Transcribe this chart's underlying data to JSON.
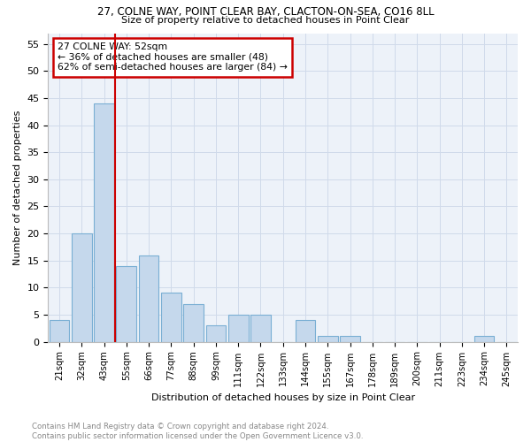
{
  "title1": "27, COLNE WAY, POINT CLEAR BAY, CLACTON-ON-SEA, CO16 8LL",
  "title2": "Size of property relative to detached houses in Point Clear",
  "xlabel": "Distribution of detached houses by size in Point Clear",
  "ylabel": "Number of detached properties",
  "categories": [
    "21sqm",
    "32sqm",
    "43sqm",
    "55sqm",
    "66sqm",
    "77sqm",
    "88sqm",
    "99sqm",
    "111sqm",
    "122sqm",
    "133sqm",
    "144sqm",
    "155sqm",
    "167sqm",
    "178sqm",
    "189sqm",
    "200sqm",
    "211sqm",
    "223sqm",
    "234sqm",
    "245sqm"
  ],
  "values": [
    4,
    20,
    44,
    14,
    16,
    9,
    7,
    3,
    5,
    5,
    0,
    4,
    1,
    1,
    0,
    0,
    0,
    0,
    0,
    1,
    0
  ],
  "bar_color": "#c5d8ec",
  "bar_edge_color": "#7aafd4",
  "red_line_x": 2.5,
  "annotation_title": "27 COLNE WAY: 52sqm",
  "annotation_line1": "← 36% of detached houses are smaller (48)",
  "annotation_line2": "62% of semi-detached houses are larger (84) →",
  "annotation_box_color": "#ffffff",
  "annotation_box_edge": "#cc0000",
  "red_line_color": "#cc0000",
  "ylim": [
    0,
    57
  ],
  "yticks": [
    0,
    5,
    10,
    15,
    20,
    25,
    30,
    35,
    40,
    45,
    50,
    55
  ],
  "footer": "Contains HM Land Registry data © Crown copyright and database right 2024.\nContains public sector information licensed under the Open Government Licence v3.0.",
  "grid_color": "#d0daea",
  "bg_color": "#edf2f9"
}
